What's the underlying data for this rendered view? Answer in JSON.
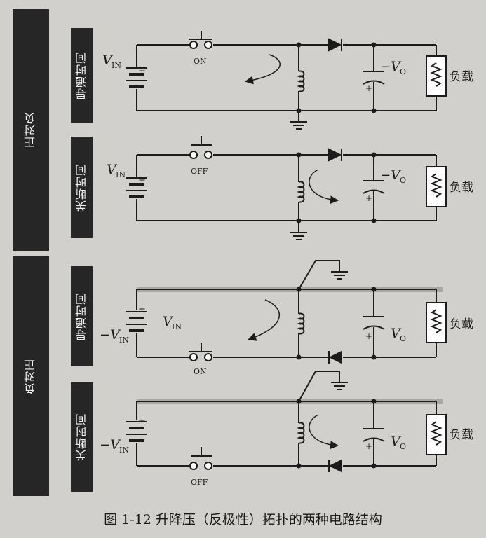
{
  "groups": {
    "pos_to_neg": "正对负",
    "neg_to_pos": "负对正"
  },
  "phases": {
    "on_time": "导通时间",
    "off_time": "关断时间"
  },
  "switch": {
    "on": "ON",
    "off": "OFF"
  },
  "labels": {
    "vin_main": "V",
    "vin_sub": "IN",
    "vout_main": "V",
    "vout_sub": "O",
    "minus": "−",
    "plus": "+",
    "load": "负载"
  },
  "caption": "图 1-12    升降压（反极性）拓扑的两种电路结构"
}
